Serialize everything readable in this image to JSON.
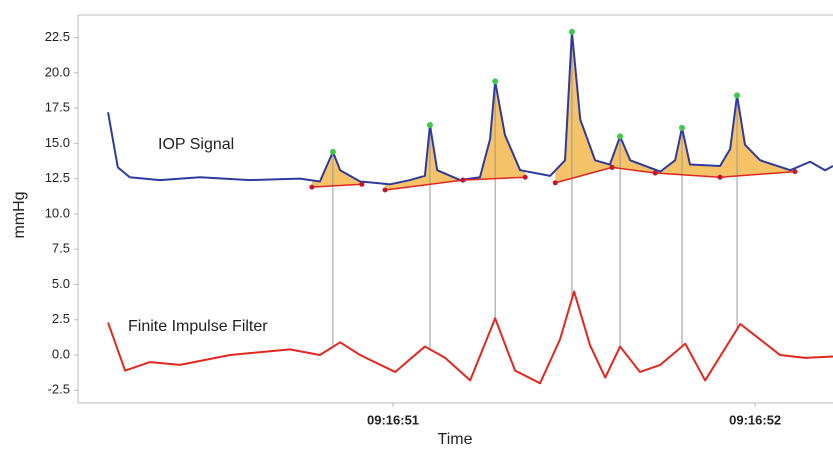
{
  "chart_data": {
    "type": "line",
    "x_label": "Time",
    "y_label": "mmHg",
    "xlim": [
      50.13,
      52.215
    ],
    "xticks": [
      {
        "value": 51,
        "label": "09:16:51"
      },
      {
        "value": 52,
        "label": "09:16:52"
      }
    ],
    "ylim": [
      -3.4,
      24.1
    ],
    "yticks": [
      -2.5,
      {
        "value": 0,
        "label": "0.0"
      },
      2.5,
      {
        "value": 5,
        "label": "5.0"
      },
      7.5,
      {
        "value": 10,
        "label": "10.0"
      },
      12.5,
      {
        "value": 15,
        "label": "15.0"
      },
      17.5,
      {
        "value": 20,
        "label": "20.0"
      },
      22.5
    ],
    "series": [
      {
        "name": "IOP Signal",
        "color": "#2e3a9e",
        "x": [
          50.213,
          50.24,
          50.273,
          50.356,
          50.467,
          50.605,
          50.743,
          50.798,
          50.834,
          50.854,
          50.909,
          50.992,
          51.047,
          51.088,
          51.102,
          51.122,
          51.185,
          51.24,
          51.268,
          51.282,
          51.309,
          51.351,
          51.434,
          51.475,
          51.494,
          51.517,
          51.558,
          51.599,
          51.627,
          51.655,
          51.738,
          51.779,
          51.798,
          51.82,
          51.903,
          51.931,
          51.95,
          51.972,
          52.014,
          52.097,
          52.152,
          52.193,
          52.215
        ],
        "values": [
          17.2,
          13.3,
          12.6,
          12.4,
          12.6,
          12.4,
          12.5,
          12.3,
          14.4,
          13.1,
          12.3,
          12.1,
          12.4,
          12.7,
          16.3,
          13.1,
          12.4,
          12.6,
          15.3,
          19.4,
          15.6,
          13.1,
          12.7,
          13.8,
          22.9,
          16.7,
          13.8,
          13.5,
          15.5,
          13.8,
          13.0,
          13.8,
          16.1,
          13.5,
          13.4,
          14.6,
          18.4,
          14.9,
          13.8,
          13.1,
          13.7,
          13.1,
          13.4
        ]
      },
      {
        "name": "Finite Impulse Filter",
        "color": "#e0281e",
        "x": [
          50.213,
          50.26,
          50.329,
          50.412,
          50.55,
          50.715,
          50.798,
          50.854,
          50.909,
          51.006,
          51.088,
          51.144,
          51.213,
          51.282,
          51.337,
          51.406,
          51.461,
          51.5,
          51.544,
          51.586,
          51.627,
          51.682,
          51.738,
          51.807,
          51.862,
          51.959,
          52.069,
          52.138,
          52.215
        ],
        "values": [
          2.3,
          -1.1,
          -0.5,
          -0.7,
          0.0,
          0.4,
          0.0,
          0.9,
          0.0,
          -1.2,
          0.6,
          -0.2,
          -1.8,
          2.6,
          -1.1,
          -2.0,
          1.1,
          4.5,
          0.7,
          -1.6,
          0.6,
          -1.2,
          -0.7,
          0.8,
          -1.8,
          2.2,
          0.0,
          -0.2,
          -0.1
        ]
      }
    ],
    "peaks": [
      {
        "x": 50.834,
        "value": 14.4,
        "start_x": 50.776,
        "start_value": 11.9,
        "end_x": 50.914,
        "end_value": 12.1
      },
      {
        "x": 51.102,
        "value": 16.3,
        "start_x": 50.978,
        "start_value": 11.7,
        "end_x": 51.193,
        "end_value": 12.4
      },
      {
        "x": 51.282,
        "value": 19.4,
        "start_x": 51.193,
        "start_value": 12.4,
        "end_x": 51.365,
        "end_value": 12.6
      },
      {
        "x": 51.494,
        "value": 22.9,
        "start_x": 51.448,
        "start_value": 12.2,
        "end_x": 51.605,
        "end_value": 13.3
      },
      {
        "x": 51.627,
        "value": 15.5,
        "start_x": 51.605,
        "start_value": 13.3,
        "end_x": 51.724,
        "end_value": 12.9
      },
      {
        "x": 51.798,
        "value": 16.1,
        "start_x": 51.724,
        "start_value": 12.9,
        "end_x": 51.903,
        "end_value": 12.6
      },
      {
        "x": 51.95,
        "value": 18.4,
        "start_x": 51.903,
        "start_value": 12.6,
        "end_x": 52.11,
        "end_value": 13.0
      }
    ]
  }
}
